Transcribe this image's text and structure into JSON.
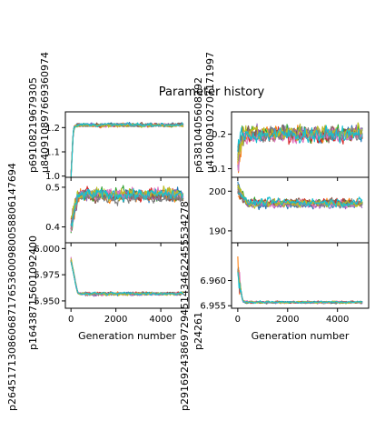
{
  "chart_data": {
    "type": "line",
    "title": "Parameter history",
    "series_count": 10,
    "x_steps": 5000,
    "x_ticks": [
      "0",
      "2000",
      "4000"
    ],
    "colors": [
      "#1f77b4",
      "#ff7f0e",
      "#2ca02c",
      "#d62728",
      "#9467bd",
      "#8c564b",
      "#e377c2",
      "#7f7f7f",
      "#bcbd22",
      "#17becf"
    ],
    "panels": [
      {
        "id": "tl",
        "ylabel": "p69108219679305µ840910897669360974",
        "ylabel_lines": [
          "p69108219679305",
          "µ840910897669360974"
        ],
        "ylim": [
          0.995,
          1.265
        ],
        "yticks": [
          {
            "v": 1.0,
            "t": "1.0"
          },
          {
            "v": 1.1,
            "t": "1.1"
          },
          {
            "v": 1.2,
            "t": "1.2"
          }
        ],
        "start": 1.0,
        "plateau": 1.21,
        "noise": 0.006,
        "rise": 120,
        "overshoot": 0.02,
        "spike": 0.0,
        "xlabel": ""
      },
      {
        "id": "tr",
        "ylabel": "p63810405608292µ410809102707171997",
        "ylabel_lines": [
          "p63810405608292",
          "µ410809102707171997"
        ],
        "ylim": [
          0.075,
          0.265
        ],
        "yticks": [
          {
            "v": 0.1,
            "t": "0.1"
          },
          {
            "v": 0.2,
            "t": "0.2"
          }
        ],
        "start": 0.13,
        "plateau": 0.2,
        "noise": 0.018,
        "rise": 250,
        "overshoot": 0.04,
        "spike": 0.05,
        "xlabel": ""
      },
      {
        "id": "ml",
        "ylabel": "p26451713086068717653600980058806147694",
        "ylabel_lines": [
          "p26451713086068717653600980058806147694"
        ],
        "ylim": [
          0.36,
          0.525
        ],
        "yticks": [
          {
            "v": 0.4,
            "t": "0.4"
          },
          {
            "v": 0.5,
            "t": "0.5"
          }
        ],
        "start": 0.4,
        "plateau": 0.48,
        "noise": 0.012,
        "rise": 350,
        "overshoot": 0.03,
        "spike": 0.0,
        "xlabel": ""
      },
      {
        "id": "mr",
        "ylabel": "p29169243869729451434622455534278",
        "ylabel_lines": [
          "p29169243869729451434622455534278"
        ],
        "ylim": [
          187.0,
          203.5
        ],
        "yticks": [
          {
            "v": 190,
            "t": "190"
          },
          {
            "v": 200,
            "t": "200"
          }
        ],
        "start": 200.5,
        "plateau": 197.0,
        "noise": 0.8,
        "rise": 350,
        "overshoot": 0.0,
        "spike": 0.0,
        "xlabel": ""
      },
      {
        "id": "bl",
        "ylabel": "p16438715601092400",
        "ylabel_lines": [
          "p16438715601092400"
        ],
        "ylim": [
          5.943,
          6.0055
        ],
        "yticks": [
          {
            "v": 5.95,
            "t": "5.950"
          },
          {
            "v": 5.975,
            "t": "5.975"
          },
          {
            "v": 6.0,
            "t": "6.000"
          }
        ],
        "start": 5.99,
        "plateau": 5.957,
        "noise": 0.0012,
        "rise": 300,
        "overshoot": 0.0,
        "spike": 0.0,
        "xlabel": "Generation number"
      },
      {
        "id": "br",
        "ylabel": "p24261",
        "ylabel_lines": [
          "p24261"
        ],
        "ylim": [
          6.9545,
          6.9675
        ],
        "yticks": [
          {
            "v": 6.955,
            "t": "6.955"
          },
          {
            "v": 6.96,
            "t": "6.960"
          }
        ],
        "start": 6.962,
        "plateau": 6.9557,
        "noise": 0.00018,
        "rise": 200,
        "overshoot": 0.0,
        "spike": 0.003,
        "xlabel": "Generation number"
      }
    ]
  }
}
